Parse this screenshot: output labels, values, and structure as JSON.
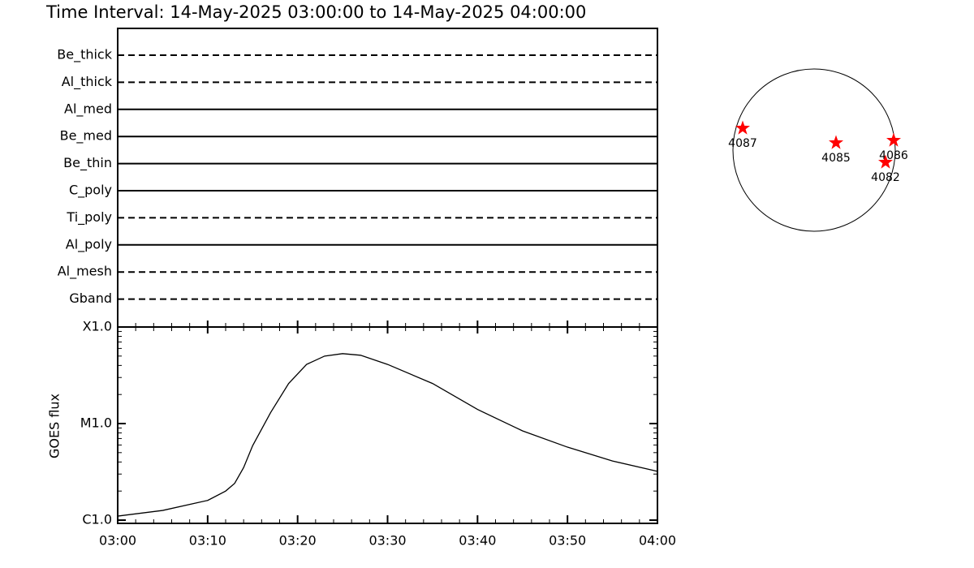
{
  "title": "Time Interval: 14-May-2025 03:00:00 to 14-May-2025 04:00:00",
  "chart_data": [
    {
      "type": "timeline",
      "categories": [
        "Be_thick",
        "Al_thick",
        "Al_med",
        "Be_med",
        "Be_thin",
        "C_poly",
        "Ti_poly",
        "Al_poly",
        "Al_mesh",
        "Gband"
      ],
      "line_styles": [
        "dashed",
        "dashed",
        "solid",
        "solid",
        "solid",
        "solid",
        "dashed",
        "solid",
        "dashed",
        "dashed"
      ],
      "xlim": [
        "03:00",
        "04:00"
      ]
    },
    {
      "type": "line",
      "ylabel": "GOES flux",
      "log_scale": true,
      "color": "#000000",
      "x": [
        "03:00",
        "03:05",
        "03:10",
        "03:12",
        "03:13",
        "03:14",
        "03:15",
        "03:17",
        "03:19",
        "03:21",
        "03:23",
        "03:25",
        "03:27",
        "03:30",
        "03:35",
        "03:40",
        "03:45",
        "03:50",
        "03:55",
        "04:00"
      ],
      "values": [
        1.1e-06,
        1.26e-06,
        1.6e-06,
        2e-06,
        2.4e-06,
        3.5e-06,
        5.9e-06,
        1.3e-05,
        2.6e-05,
        4.1e-05,
        5e-05,
        5.3e-05,
        5.1e-05,
        4.1e-05,
        2.6e-05,
        1.4e-05,
        8.4e-06,
        5.7e-06,
        4.1e-06,
        3.2e-06
      ],
      "xlim": [
        "03:00",
        "04:00"
      ],
      "xticks": [
        "03:00",
        "03:10",
        "03:20",
        "03:30",
        "03:40",
        "03:50",
        "04:00"
      ],
      "ylim": [
        1e-06,
        0.0001
      ],
      "yticks": [
        {
          "value": 1e-06,
          "label": "C1.0"
        },
        {
          "value": 1e-05,
          "label": "M1.0"
        },
        {
          "value": 0.0001,
          "label": "X1.0"
        }
      ]
    },
    {
      "type": "scatter",
      "labels": [
        "4087",
        "4085",
        "4086",
        "4082"
      ],
      "x": [
        -0.88,
        0.27,
        0.98,
        0.88
      ],
      "y": [
        0.27,
        0.09,
        0.12,
        -0.15
      ],
      "xlim": [
        -1,
        1
      ],
      "ylim": [
        -1,
        1
      ],
      "color": "#ff0000"
    }
  ]
}
